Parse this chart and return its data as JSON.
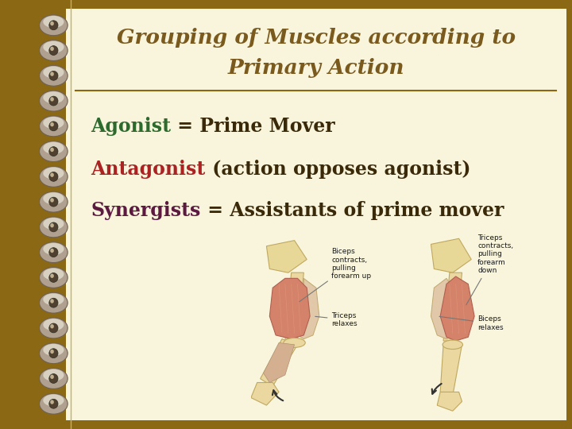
{
  "title_line1": "Grouping of Muscles according to",
  "title_line2": "Primary Action",
  "title_color": "#7B5A1E",
  "title_fontsize": 19,
  "bg_color": "#F8F5DC",
  "outer_bg_color": "#8B6914",
  "line_color": "#8B6914",
  "items": [
    {
      "keyword": "Agonist",
      "keyword_color": "#2D6A2D",
      "rest": " = Prime Mover",
      "rest_color": "#3B2A0A",
      "fontsize": 17
    },
    {
      "keyword": "Antagonist",
      "keyword_color": "#AA2222",
      "rest": " (action opposes agonist)",
      "rest_color": "#3B2A0A",
      "fontsize": 17
    },
    {
      "keyword": "Synergists",
      "keyword_color": "#5C1A40",
      "rest": " = Assistants of prime mover",
      "rest_color": "#3B2A0A",
      "fontsize": 17
    }
  ]
}
